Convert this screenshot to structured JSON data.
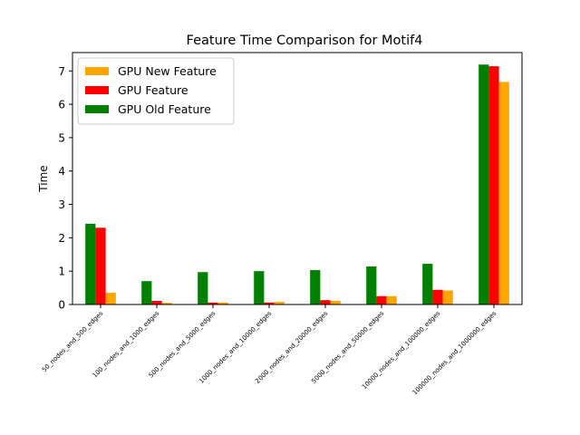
{
  "chart_data": {
    "type": "bar",
    "title": "Feature Time Comparison for Motif4",
    "xlabel": "",
    "ylabel": "Time",
    "ylim": [
      0,
      7.55
    ],
    "yticks": [
      0,
      1,
      2,
      3,
      4,
      5,
      6,
      7
    ],
    "grid": false,
    "legend_position": "top-left",
    "categories": [
      "50_nodes_and_500_edges",
      "100_nodes_and_1000_edges",
      "500_nodes_and_5000_edges",
      "1000_nodes_and_10000_edges",
      "2000_nodes_and_20000_edges",
      "5000_nodes_and_50000_edges",
      "10000_nodes_and_100000_edges",
      "100000_nodes_and_1000000_edges"
    ],
    "series": [
      {
        "name": "GPU Old Feature",
        "color": "#008000",
        "values": [
          2.42,
          0.7,
          0.97,
          1.0,
          1.03,
          1.14,
          1.22,
          7.19
        ]
      },
      {
        "name": "GPU Feature",
        "color": "#ff0000",
        "values": [
          2.3,
          0.11,
          0.06,
          0.06,
          0.13,
          0.25,
          0.44,
          7.14
        ]
      },
      {
        "name": "GPU New Feature",
        "color": "#ffa500",
        "values": [
          0.35,
          0.05,
          0.06,
          0.08,
          0.11,
          0.25,
          0.42,
          6.67
        ]
      }
    ],
    "legend_order": [
      "GPU New Feature",
      "GPU Feature",
      "GPU Old Feature"
    ]
  }
}
